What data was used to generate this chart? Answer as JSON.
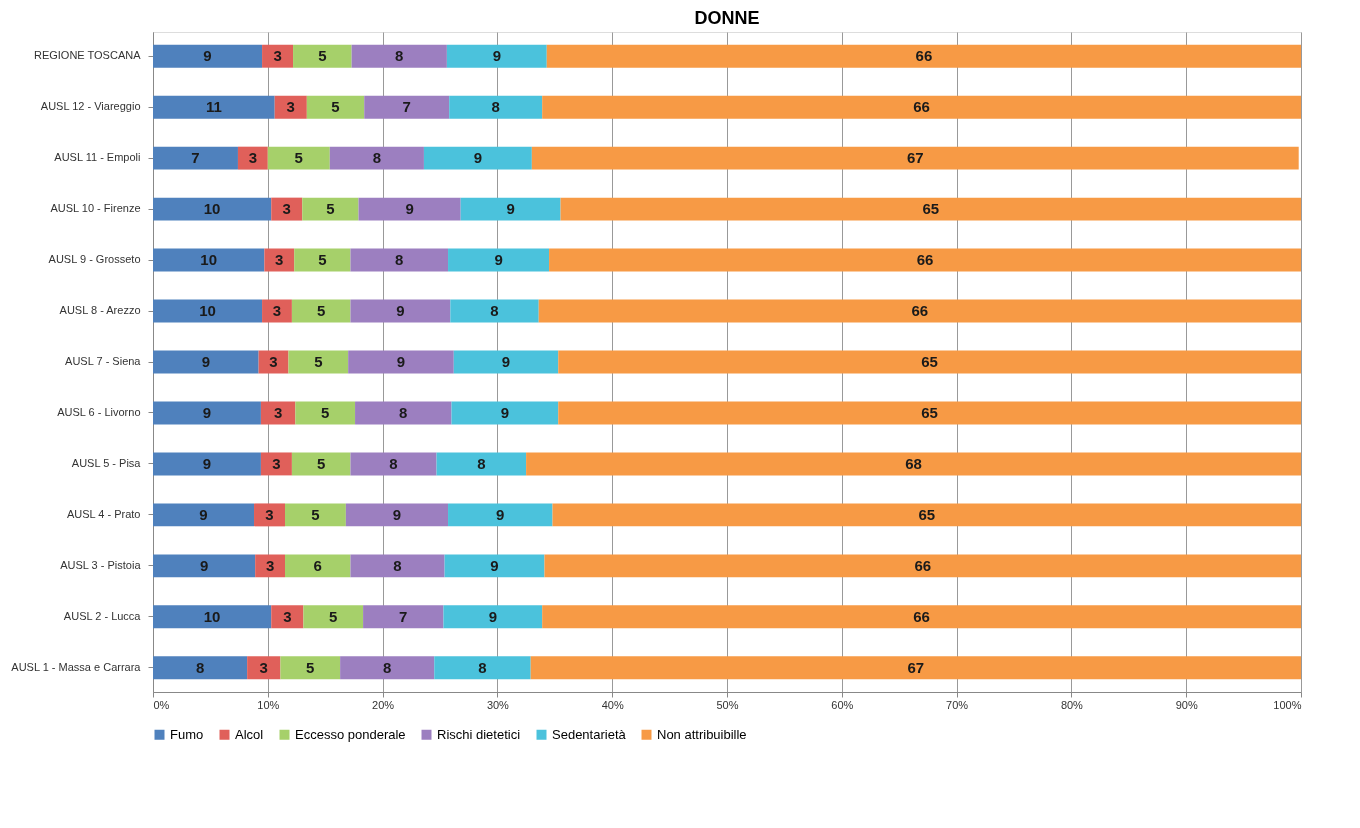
{
  "chart_data": {
    "type": "bar",
    "orientation": "horizontal",
    "stacked": true,
    "title": "DONNE",
    "categories": [
      "REGIONE TOSCANA",
      "AUSL 12 - Viareggio",
      "AUSL 11 - Empoli",
      "AUSL 10 - Firenze",
      "AUSL 9 - Grosseto",
      "AUSL 8 - Arezzo",
      "AUSL 7 - Siena",
      "AUSL 6 - Livorno",
      "AUSL 5 - Pisa",
      "AUSL 4 - Prato",
      "AUSL 3 - Pistoia",
      "AUSL 2 - Lucca",
      "AUSL 1 - Massa e Carrara"
    ],
    "series": [
      {
        "name": "Fumo",
        "color": "#4f81bd",
        "values": [
          9.5,
          10.6,
          7.4,
          10.3,
          9.7,
          9.5,
          9.2,
          9.4,
          9.4,
          8.8,
          8.9,
          10.3,
          8.2
        ],
        "value_labels": [
          "9",
          "11",
          "7",
          "10",
          "10",
          "10",
          "9",
          "9",
          "9",
          "9",
          "9",
          "10",
          "8"
        ]
      },
      {
        "name": "Alcol",
        "color": "#e0605a",
        "values": [
          2.7,
          2.8,
          2.6,
          2.7,
          2.6,
          2.6,
          2.6,
          3.0,
          2.7,
          2.7,
          2.6,
          2.8,
          2.9
        ],
        "value_labels": [
          "3",
          "3",
          "3",
          "3",
          "3",
          "3",
          "3",
          "3",
          "3",
          "3",
          "3",
          "3",
          "3"
        ]
      },
      {
        "name": "Eccesso ponderale",
        "color": "#a6d06a",
        "values": [
          5.1,
          5.0,
          5.4,
          4.9,
          4.9,
          5.1,
          5.2,
          5.2,
          5.1,
          5.3,
          5.7,
          5.2,
          5.2
        ],
        "value_labels": [
          "5",
          "5",
          "5",
          "5",
          "5",
          "5",
          "5",
          "5",
          "5",
          "5",
          "6",
          "5",
          "5"
        ]
      },
      {
        "name": "Rischi dietetici",
        "color": "#9c7fc0",
        "values": [
          8.3,
          7.4,
          8.2,
          8.9,
          8.5,
          8.7,
          9.2,
          8.4,
          7.5,
          8.9,
          8.2,
          7.0,
          8.2
        ],
        "value_labels": [
          "8",
          "7",
          "8",
          "9",
          "8",
          "9",
          "9",
          "8",
          "8",
          "9",
          "8",
          "7",
          "8"
        ]
      },
      {
        "name": "Sedentarietà",
        "color": "#4bc2dc",
        "values": [
          8.7,
          8.1,
          9.4,
          8.7,
          8.8,
          7.7,
          9.1,
          9.3,
          7.8,
          9.1,
          8.7,
          8.6,
          8.4
        ],
        "value_labels": [
          "9",
          "8",
          "9",
          "9",
          "9",
          "8",
          "9",
          "9",
          "8",
          "9",
          "9",
          "9",
          "8"
        ]
      },
      {
        "name": "Non attribuibille",
        "color": "#f79a45",
        "values": [
          65.7,
          66.1,
          66.8,
          64.5,
          65.5,
          66.4,
          64.7,
          64.7,
          67.5,
          65.2,
          65.9,
          66.1,
          67.1
        ],
        "value_labels": [
          "66",
          "66",
          "67",
          "65",
          "66",
          "66",
          "65",
          "65",
          "68",
          "65",
          "66",
          "66",
          "67"
        ]
      }
    ],
    "xlim": [
      0,
      100
    ],
    "xticks": [
      {
        "value": 0,
        "label": "0%"
      },
      {
        "value": 10,
        "label": "10%"
      },
      {
        "value": 20,
        "label": "20%"
      },
      {
        "value": 30,
        "label": "30%"
      },
      {
        "value": 40,
        "label": "40%"
      },
      {
        "value": 50,
        "label": "50%"
      },
      {
        "value": 60,
        "label": "60%"
      },
      {
        "value": 70,
        "label": "70%"
      },
      {
        "value": 80,
        "label": "80%"
      },
      {
        "value": 90,
        "label": "90%"
      },
      {
        "value": 100,
        "label": "100%"
      }
    ],
    "grid": "x",
    "legend": "bottom"
  }
}
